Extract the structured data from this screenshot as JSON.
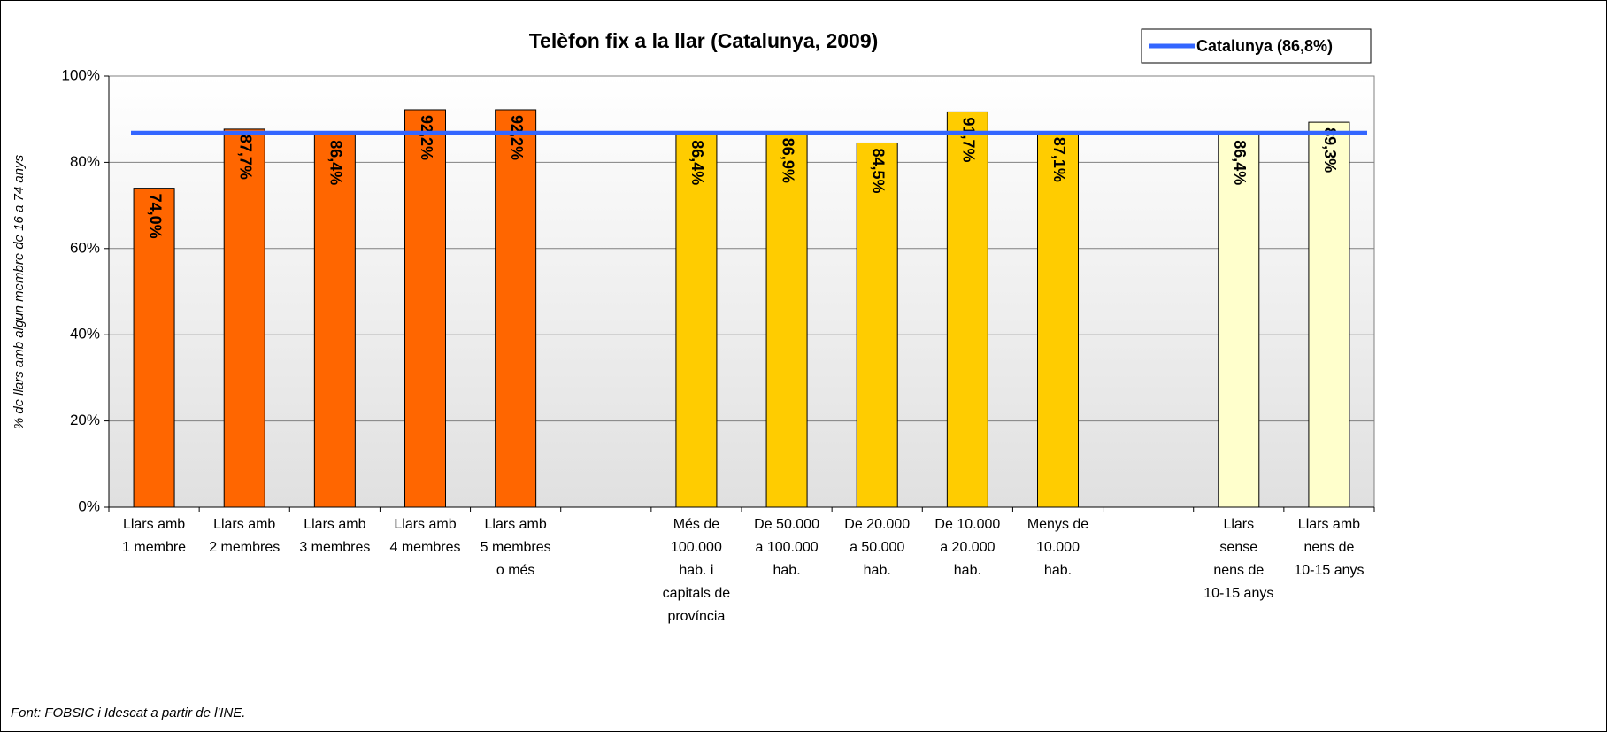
{
  "chart_data": {
    "type": "bar",
    "title": "Telèfon fix a la llar (Catalunya, 2009)",
    "y_label": "% de llars amb algun membre de 16 a 74 anys",
    "source": "Font: FOBSIC i Idescat a partir de l'INE.",
    "categories": [
      [
        "Llars amb",
        "1 membre"
      ],
      [
        "Llars amb",
        "2 membres"
      ],
      [
        "Llars amb",
        "3 membres"
      ],
      [
        "Llars amb",
        "4 membres"
      ],
      [
        "Llars amb",
        "5 membres",
        "o més"
      ],
      null,
      [
        "Més de",
        "100.000",
        "hab. i",
        "capitals de",
        "província"
      ],
      [
        "De 50.000",
        "a 100.000",
        "hab."
      ],
      [
        "De 20.000",
        "a 50.000",
        "hab."
      ],
      [
        "De 10.000",
        "a 20.000",
        "hab."
      ],
      [
        "Menys de",
        "10.000",
        "hab."
      ],
      null,
      [
        "Llars",
        "sense",
        "nens de",
        "10-15 anys"
      ],
      [
        "Llars amb",
        "nens de",
        "10-15 anys"
      ]
    ],
    "values": [
      74.0,
      87.7,
      86.4,
      92.2,
      92.2,
      null,
      86.4,
      86.9,
      84.5,
      91.7,
      87.1,
      null,
      86.4,
      89.3
    ],
    "value_labels": [
      "74,0%",
      "87,7%",
      "86,4%",
      "92,2%",
      "92,2%",
      null,
      "86,4%",
      "86,9%",
      "84,5%",
      "91,7%",
      "87,1%",
      null,
      "86,4%",
      "89,3%"
    ],
    "colors": [
      "#ff6600",
      "#ff6600",
      "#ff6600",
      "#ff6600",
      "#ff6600",
      null,
      "#ffcc00",
      "#ffcc00",
      "#ffcc00",
      "#ffcc00",
      "#ffcc00",
      null,
      "#ffffcc",
      "#ffffcc"
    ],
    "reference": {
      "name": "Catalunya (86,8%)",
      "value": 86.8,
      "color": "#3366ff"
    },
    "ylim": [
      0,
      100
    ],
    "yticks": [
      {
        "value": 0,
        "label": "0%"
      },
      {
        "value": 20,
        "label": "20%"
      },
      {
        "value": 40,
        "label": "40%"
      },
      {
        "value": 60,
        "label": "60%"
      },
      {
        "value": 80,
        "label": "80%"
      },
      {
        "value": 100,
        "label": "100%"
      }
    ],
    "grid": true,
    "legend": "top-right"
  }
}
